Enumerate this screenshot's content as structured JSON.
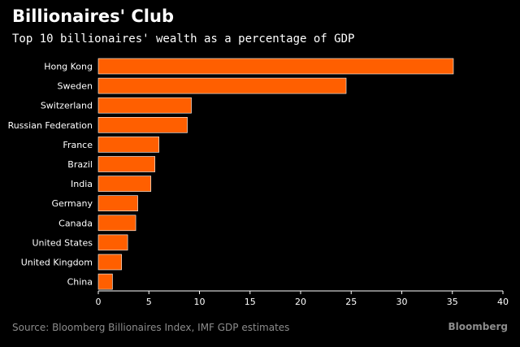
{
  "chart_data": {
    "type": "bar",
    "orientation": "horizontal",
    "title": "Billionaires' Club",
    "subtitle": "Top 10 billionaires' wealth as a percentage of GDP",
    "categories": [
      "Hong Kong",
      "Sweden",
      "Switzerland",
      "Russian Federation",
      "France",
      "Brazil",
      "India",
      "Germany",
      "Canada",
      "United States",
      "United Kingdom",
      "China"
    ],
    "values": [
      35.1,
      24.5,
      9.2,
      8.8,
      6.0,
      5.6,
      5.2,
      3.9,
      3.7,
      2.9,
      2.3,
      1.4
    ],
    "xlim": [
      0,
      40
    ],
    "xticks": [
      "0",
      "5",
      "10",
      "15",
      "20",
      "25",
      "30",
      "35",
      "40"
    ],
    "xlabel": "",
    "ylabel": "",
    "grid": false,
    "legend": "none"
  },
  "source": "Source: Bloomberg Billionaires Index, IMF GDP estimates",
  "brand": "Bloomberg",
  "colors": {
    "bar": "#ff5f00",
    "bar_edge": "#ffffff",
    "background": "#000000",
    "text": "#ffffff",
    "muted": "#8c8c8c"
  }
}
